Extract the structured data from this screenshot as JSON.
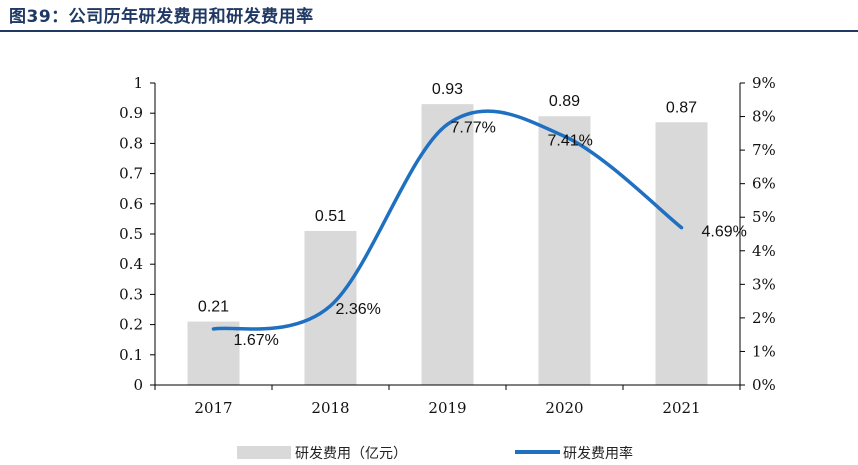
{
  "figure": {
    "title": "图39：公司历年研发费用和研发费用率"
  },
  "chart_data": {
    "type": "bar",
    "categories": [
      "2017",
      "2018",
      "2019",
      "2020",
      "2021"
    ],
    "series": [
      {
        "name": "研发费用（亿元）",
        "type": "bar",
        "axis": "left",
        "values": [
          0.21,
          0.51,
          0.93,
          0.89,
          0.87
        ],
        "labels": [
          "0.21",
          "0.51",
          "0.93",
          "0.89",
          "0.87"
        ],
        "color": "#d9d9d9"
      },
      {
        "name": "研发费用率",
        "type": "line",
        "axis": "right",
        "values": [
          1.67,
          2.36,
          7.77,
          7.41,
          4.69
        ],
        "labels": [
          "1.67%",
          "2.36%",
          "7.77%",
          "7.41%",
          "4.69%"
        ],
        "color": "#1f70c1"
      }
    ],
    "y_left": {
      "min": 0,
      "max": 1,
      "ticks": [
        "0",
        "0.1",
        "0.2",
        "0.3",
        "0.4",
        "0.5",
        "0.6",
        "0.7",
        "0.8",
        "0.9",
        "1"
      ]
    },
    "y_right": {
      "min": 0,
      "max": 9,
      "unit": "%",
      "ticks": [
        "0%",
        "1%",
        "2%",
        "3%",
        "4%",
        "5%",
        "6%",
        "7%",
        "8%",
        "9%"
      ]
    },
    "grid": false,
    "legend": "bottom"
  }
}
